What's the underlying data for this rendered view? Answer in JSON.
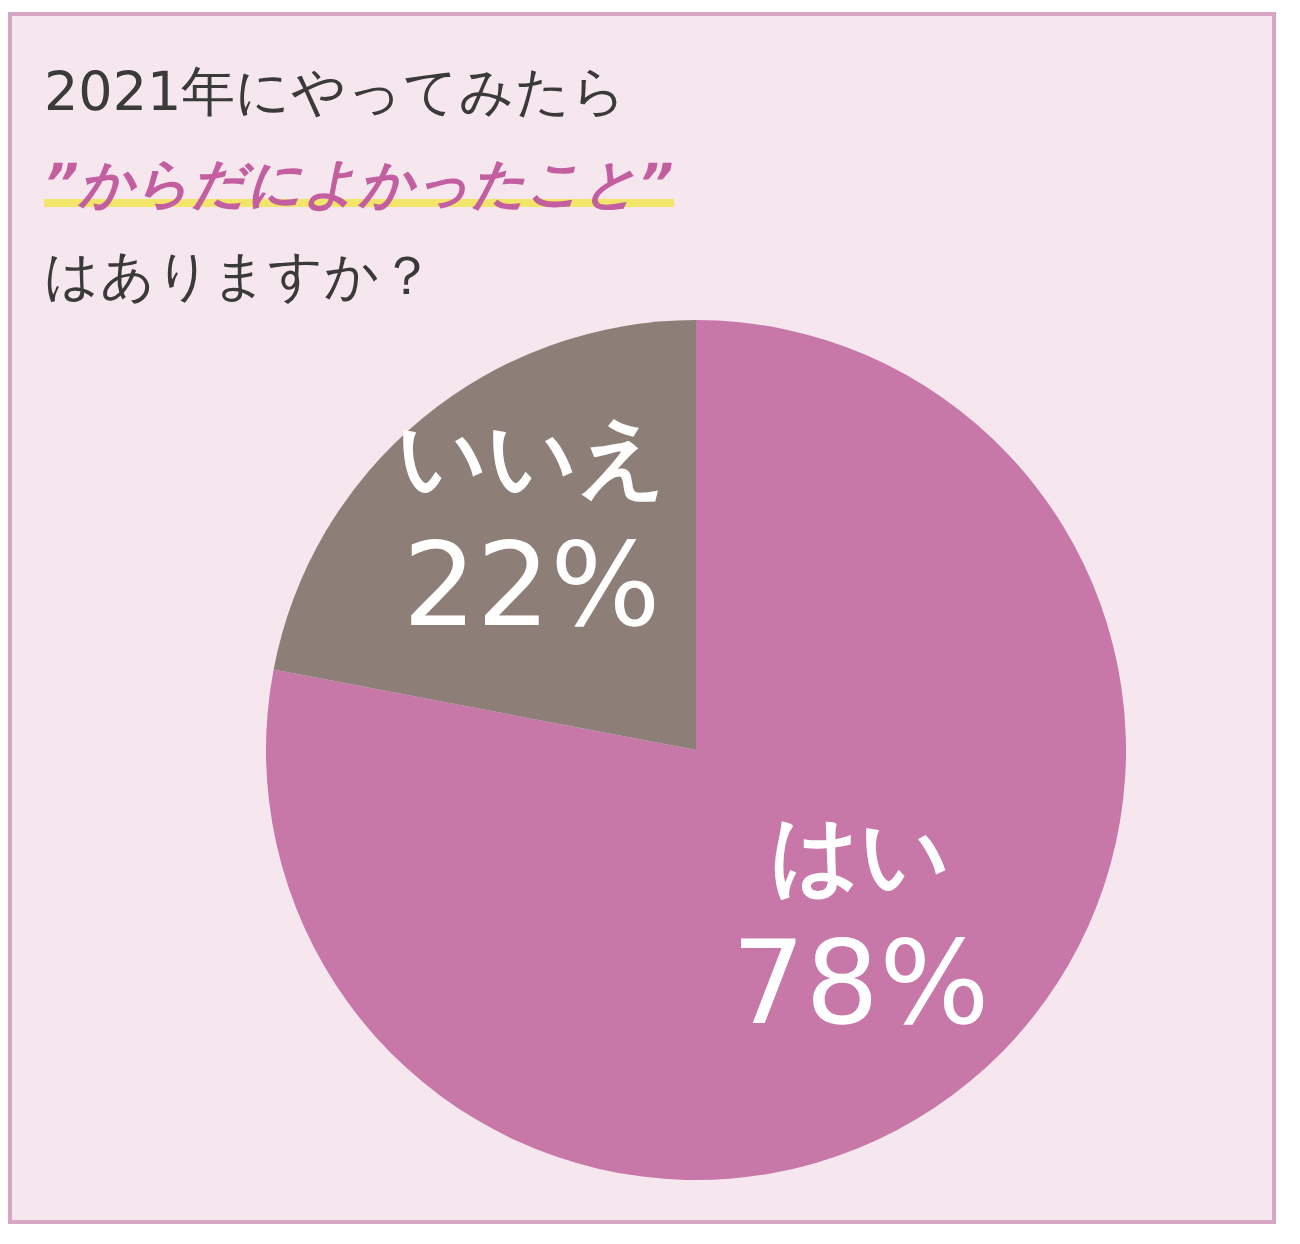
{
  "chart_data": {
    "type": "pie",
    "title": "2021年にやってみたら\n”からだによかったこと”\nはありますか？",
    "categories": [
      "はい",
      "いいえ"
    ],
    "values": [
      78,
      22
    ],
    "colors": [
      "#c778a9",
      "#8d7e78"
    ],
    "value_labels": [
      "78%",
      "22%"
    ],
    "legend": false
  }
}
